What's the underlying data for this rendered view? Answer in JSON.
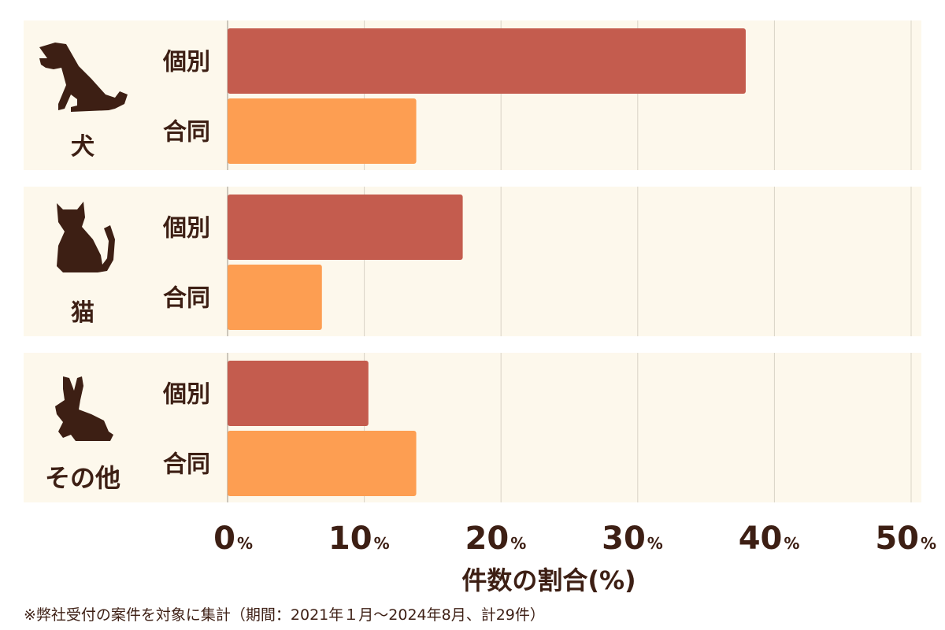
{
  "chart_data": {
    "type": "bar",
    "orientation": "horizontal",
    "groups": [
      {
        "label": "犬",
        "icon": "dog-icon"
      },
      {
        "label": "猫",
        "icon": "cat-icon"
      },
      {
        "label": "その他",
        "icon": "rabbit-icon"
      }
    ],
    "series": [
      {
        "name": "個別",
        "color": "#c45c4e",
        "values": [
          37.9,
          17.2,
          10.3
        ]
      },
      {
        "name": "合同",
        "color": "#fd9e52",
        "values": [
          13.8,
          6.9,
          13.8
        ]
      }
    ],
    "xlim": [
      0,
      50
    ],
    "xticks": [
      0,
      10,
      20,
      30,
      40,
      50
    ],
    "tick_labels": [
      "0",
      "10",
      "20",
      "30",
      "40",
      "50"
    ],
    "tick_unit": "%",
    "xlabel": "件数の割合(%)",
    "grid": true,
    "panel_color": "#fdf8ec",
    "text_color": "#3d1f14"
  },
  "footnote": "※弊社受付の案件を対象に集計（期間：2021年１月～2024年8月、計29件）"
}
